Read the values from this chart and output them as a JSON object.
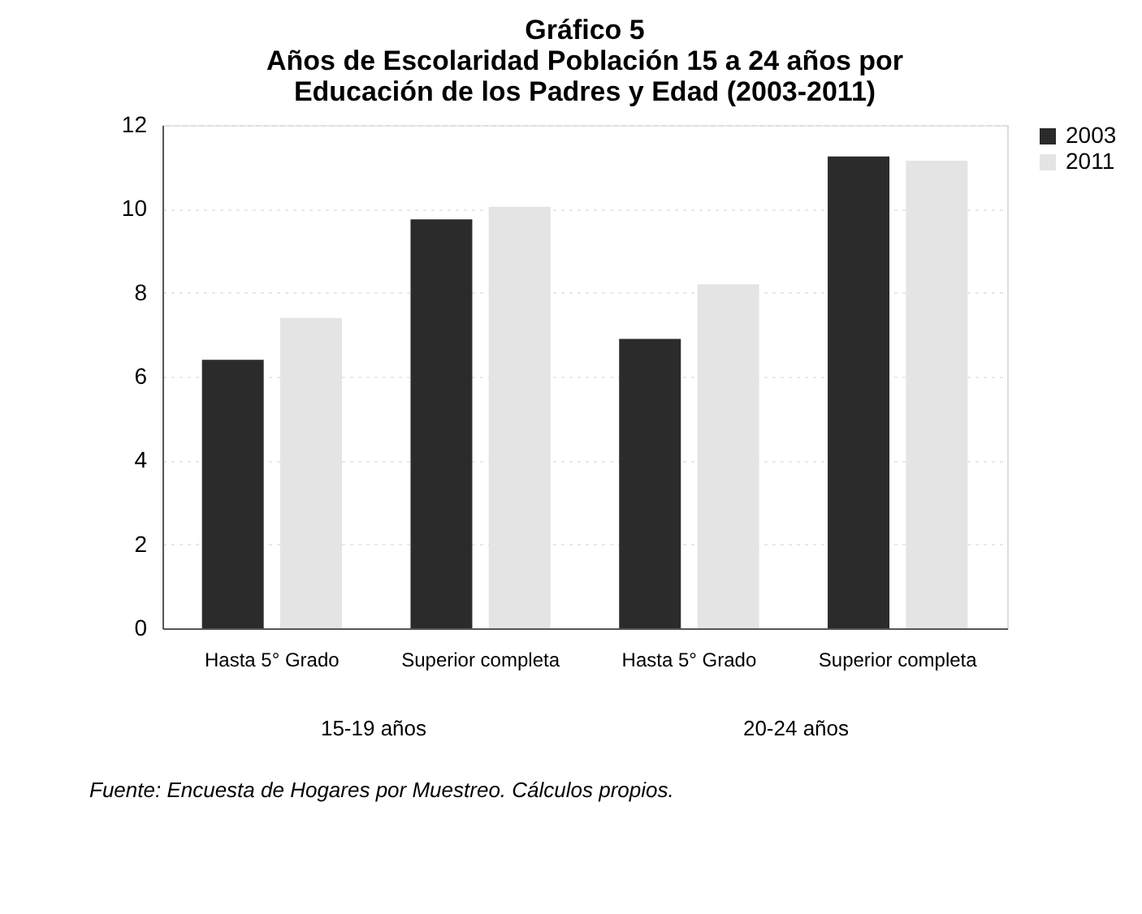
{
  "chart_data": {
    "type": "bar",
    "title": [
      "Gráfico 5",
      "Años de Escolaridad Población 15 a 24 años por",
      "Educación de los Padres y Edad (2003-2011)"
    ],
    "categories": [
      "Hasta 5° Grado",
      "Superior completa",
      "Hasta 5° Grado",
      "Superior completa"
    ],
    "series": [
      {
        "name": "2003",
        "color": "#2b2b2b",
        "values": [
          6.4,
          9.75,
          6.9,
          11.25
        ]
      },
      {
        "name": "2011",
        "color": "#e4e4e4",
        "values": [
          7.4,
          10.05,
          8.2,
          11.15
        ]
      }
    ],
    "ylim": [
      0,
      12
    ],
    "yticks": [
      0,
      2,
      4,
      6,
      8,
      10,
      12
    ],
    "grid": "y",
    "legend": "right",
    "annotations": [
      "15-19 años",
      "20-24 años",
      "Fuente: Encuesta de Hogares por Muestreo. Cálculos propios."
    ]
  }
}
